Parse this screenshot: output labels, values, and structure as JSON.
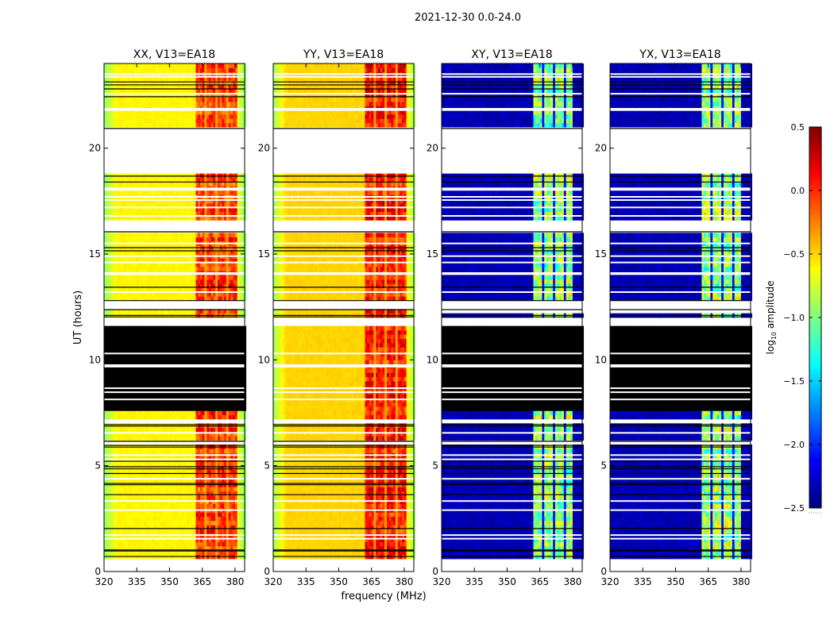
{
  "chart_data": {
    "type": "heatmap",
    "suptitle": "2021-12-30 0.0-24.0",
    "xlabel": "frequency (MHz)",
    "ylabel": "UT (hours)",
    "xlim": [
      320,
      384.4
    ],
    "ylim": [
      0,
      24
    ],
    "xticks": [
      320,
      335,
      350,
      365,
      380
    ],
    "yticks": [
      0,
      5,
      10,
      15,
      20
    ],
    "colorbar": {
      "label_main": "log",
      "label_sub": "10",
      "label_rest": " amplitude",
      "range": [
        -2.5,
        0.5
      ],
      "ticks": [
        "0.5",
        "0.0",
        "−0.5",
        "−1.0",
        "−1.5",
        "−2.0",
        "−2.5"
      ],
      "tick_values": [
        0.5,
        0.0,
        -0.5,
        -1.0,
        -1.5,
        -2.0,
        -2.5
      ],
      "colormap": "jet"
    },
    "band_mhz": [
      362,
      381
    ],
    "channel_gaps_mhz": [
      366.5,
      371.5,
      376.5
    ],
    "panels": [
      {
        "title": "XX, V13=EA18",
        "kind": "parallel",
        "base_level": -0.6,
        "edge_level": -0.95,
        "band_level": -0.05,
        "flagged_hours": [
          [
            0,
            0.56
          ],
          [
            5.75,
            5.8
          ],
          [
            6.05,
            6.15
          ],
          [
            7.05,
            7.3
          ],
          [
            11.65,
            11.9
          ],
          [
            12.4,
            12.7
          ],
          [
            16.05,
            16.65
          ],
          [
            18.8,
            20.9
          ]
        ],
        "zero_hours": [
          [
            7.65,
            11.65
          ]
        ]
      },
      {
        "title": "YY, V13=EA18",
        "kind": "parallel",
        "base_level": -0.5,
        "edge_level": -0.9,
        "band_level": 0.05,
        "flagged_hours": [
          [
            0,
            0.56
          ],
          [
            5.75,
            5.8
          ],
          [
            6.05,
            6.15
          ],
          [
            7.05,
            7.3
          ],
          [
            11.65,
            11.9
          ],
          [
            12.4,
            12.7
          ],
          [
            16.05,
            16.65
          ],
          [
            18.8,
            20.9
          ]
        ],
        "zero_hours": []
      },
      {
        "title": "XY, V13=EA18",
        "kind": "cross",
        "base_level": -2.35,
        "edge_level": -2.4,
        "band_level": -0.95,
        "flagged_hours": [
          [
            0,
            0.56
          ],
          [
            5.75,
            5.8
          ],
          [
            6.05,
            6.15
          ],
          [
            7.05,
            7.3
          ],
          [
            11.65,
            11.9
          ],
          [
            12.1,
            12.75
          ],
          [
            16.05,
            16.65
          ],
          [
            18.8,
            20.9
          ]
        ],
        "zero_hours": [
          [
            7.65,
            11.65
          ]
        ]
      },
      {
        "title": "YX, V13=EA18",
        "kind": "cross",
        "base_level": -2.35,
        "edge_level": -2.4,
        "band_level": -0.95,
        "flagged_hours": [
          [
            0,
            0.56
          ],
          [
            5.75,
            5.8
          ],
          [
            6.05,
            6.15
          ],
          [
            7.05,
            7.3
          ],
          [
            11.65,
            11.9
          ],
          [
            12.1,
            12.75
          ],
          [
            16.05,
            16.65
          ],
          [
            18.8,
            20.9
          ]
        ],
        "zero_hours": [
          [
            7.65,
            11.65
          ]
        ]
      }
    ],
    "flag_lines_hours": [
      23.5,
      23.37,
      22.57,
      21.86,
      21.8,
      18.1,
      18.03,
      17.7,
      17.55,
      17.2,
      16.8,
      15.5,
      14.9,
      14.6,
      14.1,
      14.05,
      13.2,
      10.3,
      9.75,
      9.68,
      8.66,
      8.47,
      8.13,
      6.55,
      5.5,
      5.3,
      4.38,
      3.33,
      2.9,
      1.72,
      1.55
    ],
    "scan_boundary_hours": [
      23.13,
      22.99,
      22.8,
      22.43,
      20.93,
      18.68,
      18.4,
      16.05,
      15.3,
      15.15,
      13.43,
      12.8,
      12.37,
      12.1,
      12.03,
      6.94,
      6.87,
      6.15,
      5.96,
      5.88,
      5.21,
      4.95,
      4.85,
      4.63,
      4.16,
      4.1,
      3.63,
      2.03,
      1.02,
      0.97,
      0.71
    ]
  }
}
